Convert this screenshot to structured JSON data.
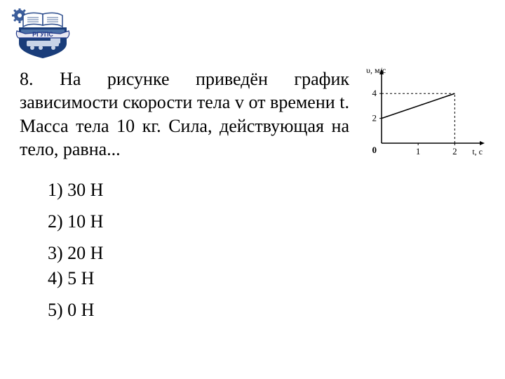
{
  "logo": {
    "banner_text": "РГУПС",
    "colors": {
      "shield_border": "#1a3d7a",
      "shield_top": "#4a6fa5",
      "shield_bottom": "#1a3d7a",
      "banner_bg": "#e8e8f2",
      "banner_text": "#223a8a",
      "gear": "#3a5c9a",
      "book_pages": "#ffffff",
      "book_spine": "#2b4c8c"
    }
  },
  "question": {
    "number": "8.",
    "text": "На рисунке приведён график зависимости скорости тела v от времени t. Масса тела 10 кг. Сила, действующая на тело, равна..."
  },
  "chart": {
    "type": "line",
    "ylabel": "υ, м/с",
    "xlabel": "t, с",
    "xlim": [
      0,
      2.3
    ],
    "ylim": [
      0,
      5.2
    ],
    "yticks": [
      2,
      4
    ],
    "xticks": [
      1,
      2
    ],
    "origin_label": "0",
    "line_points": [
      [
        0,
        2
      ],
      [
        2,
        4
      ]
    ],
    "dashed_refs": [
      {
        "from": [
          0,
          4
        ],
        "to": [
          2,
          4
        ]
      },
      {
        "from": [
          2,
          0
        ],
        "to": [
          2,
          4
        ]
      }
    ],
    "colors": {
      "axis": "#000000",
      "line": "#000000",
      "dash": "#000000",
      "text": "#000000",
      "bg": "#ffffff"
    },
    "stroke_width_axis": 1.5,
    "stroke_width_line": 1.6,
    "stroke_width_dash": 1.0,
    "font_size_labels": 12,
    "font_size_ticks": 13
  },
  "answers": [
    {
      "n": "1)",
      "v": "30 Н"
    },
    {
      "n": "2)",
      "v": "10 Н"
    },
    {
      "n": "3)",
      "v": "20 Н"
    },
    {
      "n": "4)",
      "v": "5 Н"
    },
    {
      "n": "5)",
      "v": "0 Н"
    }
  ]
}
